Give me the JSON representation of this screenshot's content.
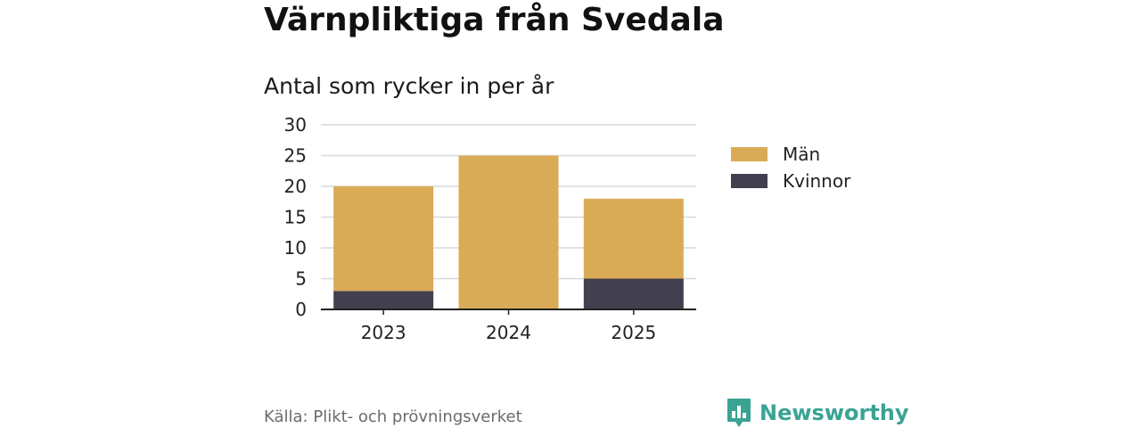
{
  "header": {
    "title": "Värnpliktiga från Svedala",
    "subtitle": "Antal som rycker in per år"
  },
  "footer": {
    "source": "Källa: Plikt- och prövningsverket",
    "brand": "Newsworthy",
    "brand_icon": "bar-chart-icon"
  },
  "colors": {
    "men": "#d9ab57",
    "women": "#42404e",
    "grid": "#d9d9d9",
    "brand": "#3aa394"
  },
  "chart_data": {
    "type": "bar",
    "stacked": true,
    "categories": [
      "2023",
      "2024",
      "2025"
    ],
    "series": [
      {
        "name": "Kvinnor",
        "values": [
          3,
          0,
          5
        ]
      },
      {
        "name": "Män",
        "values": [
          17,
          25,
          13
        ]
      }
    ],
    "ylim": [
      0,
      30
    ],
    "yticks": [
      "0",
      "5",
      "10",
      "15",
      "20",
      "25",
      "30"
    ],
    "grid": true,
    "legend": [
      "Män",
      "Kvinnor"
    ],
    "legend_position": "right"
  }
}
